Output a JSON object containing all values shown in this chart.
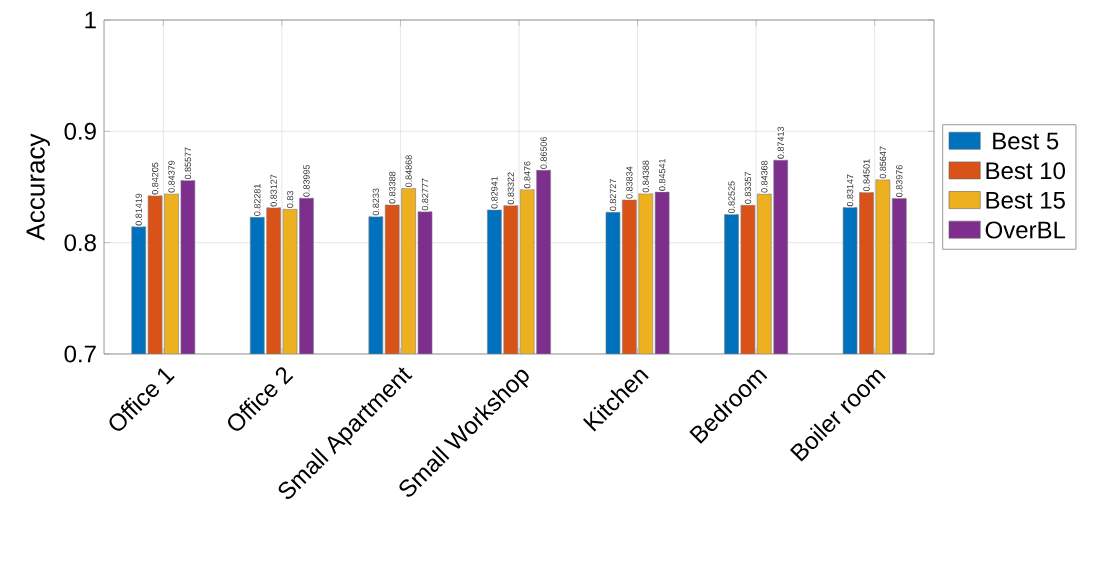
{
  "chart_data": {
    "type": "bar",
    "ylabel": "Accuracy",
    "categories": [
      "Office 1",
      "Office 2",
      "Small Apartment",
      "Small Workshop",
      "Kitchen",
      "Bedroom",
      "Boiler room"
    ],
    "series": [
      {
        "name": "Best 5",
        "color": "#0072bd",
        "values": [
          0.81419,
          0.82281,
          0.8233,
          0.82941,
          0.82727,
          0.82525,
          0.83147
        ]
      },
      {
        "name": "Best 10",
        "color": "#d95319",
        "values": [
          0.84205,
          0.83127,
          0.83388,
          0.83322,
          0.83834,
          0.83357,
          0.84501
        ]
      },
      {
        "name": "Best 15",
        "color": "#edb120",
        "values": [
          0.84379,
          0.83,
          0.84868,
          0.8476,
          0.84388,
          0.84368,
          0.85647
        ]
      },
      {
        "name": "OverBL",
        "color": "#7e2f8e",
        "values": [
          0.85577,
          0.83995,
          0.82777,
          0.86506,
          0.84541,
          0.87413,
          0.83976
        ]
      }
    ],
    "ylim": [
      0.7,
      1
    ],
    "yticks": [
      0.7,
      0.8,
      0.9,
      1
    ],
    "grid": true,
    "legend": "right",
    "data_labels": true
  }
}
